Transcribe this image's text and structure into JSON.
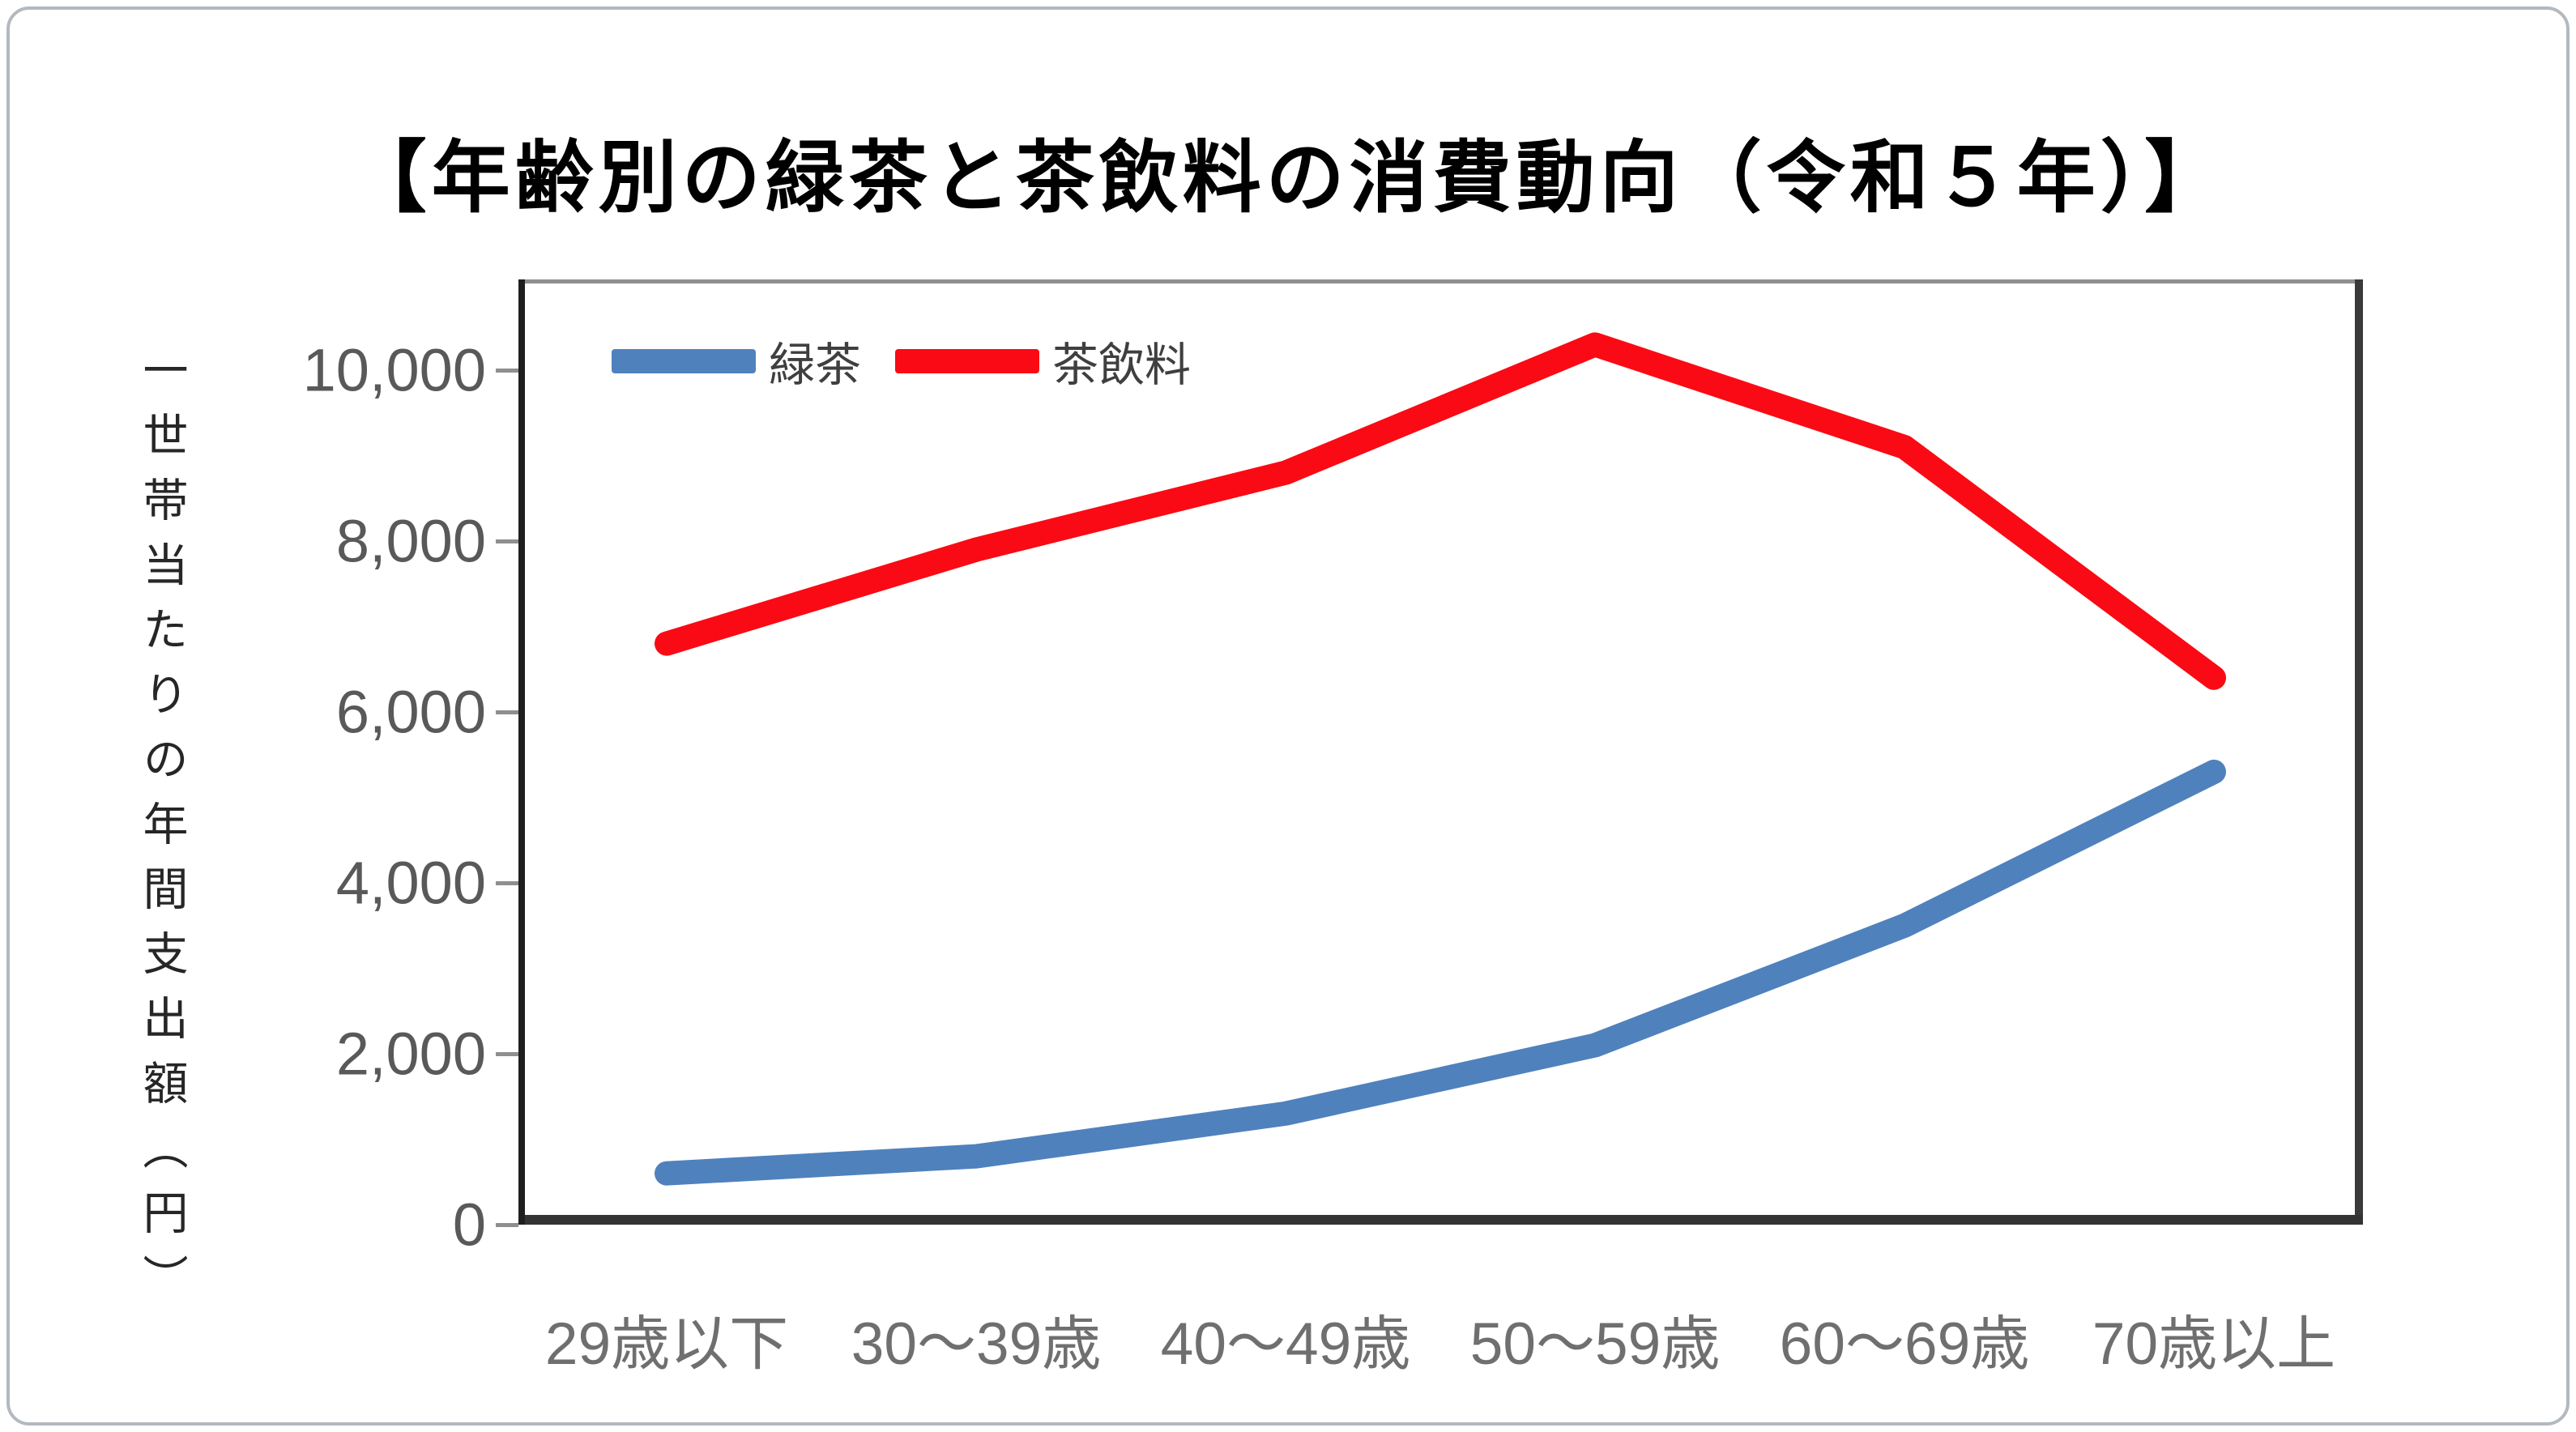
{
  "chart_data": {
    "type": "line",
    "title": "【年齢別の緑茶と茶飲料の消費動向（令和５年）】",
    "ylabel": "一世帯当たりの年間支出額（円）",
    "categories": [
      "29歳以下",
      "30～39歳",
      "40～49歳",
      "50～59歳",
      "60～69歳",
      "70歳以上"
    ],
    "series": [
      {
        "name": "緑茶",
        "color": "#4F81BD",
        "values": [
          600,
          800,
          1300,
          2100,
          3500,
          5300
        ]
      },
      {
        "name": "茶飲料",
        "color": "#FA0A14",
        "values": [
          6800,
          7900,
          8800,
          10300,
          9100,
          6400
        ]
      }
    ],
    "ylim": [
      0,
      10000
    ],
    "yticks": [
      0,
      2000,
      4000,
      6000,
      8000,
      10000
    ],
    "ytick_labels": [
      "0",
      "2,000",
      "4,000",
      "6,000",
      "8,000",
      "10,000"
    ],
    "grid": false,
    "legend_position": "top-left-inside",
    "axis_colors": {
      "box": "#8f8f8f",
      "left": "#1f1f1f",
      "bottom": "#333333",
      "right": "#3a3a3a",
      "tick_label": "#595959",
      "category_label": "#6f6f6f"
    }
  }
}
